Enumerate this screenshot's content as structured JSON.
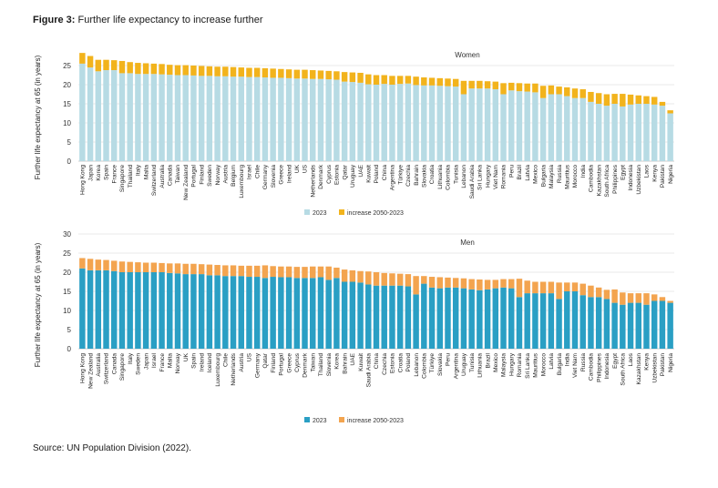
{
  "figure": {
    "label": "Figure 3:",
    "title": "Further life expectancy to increase further",
    "source": "Source: UN Population Division (2022)."
  },
  "colors": {
    "women_2023": "#b7dbe4",
    "men_2023": "#2a9fc4",
    "women_increase": "#f2b31c",
    "men_increase": "#f3a44f",
    "gridline": "#e3e3e3",
    "axis": "#555555"
  },
  "chart_data": [
    {
      "type": "bar",
      "stacked": true,
      "title": "Women",
      "ylabel": "Further life expectancy at 65 (in years)",
      "xlabel": "",
      "ylim": [
        0,
        30
      ],
      "yticks": [
        0,
        5,
        10,
        15,
        20,
        25
      ],
      "grid": true,
      "legend_position": "bottom-center",
      "categories": [
        "Hong Kong",
        "Japan",
        "Korea",
        "Spain",
        "France",
        "Singapore",
        "Thailand",
        "Italy",
        "Malta",
        "Switzerland",
        "Australia",
        "Canada",
        "Taiwan",
        "New Zealand",
        "Portugal",
        "Finland",
        "Sweden",
        "Norway",
        "Austria",
        "Belgium",
        "Luxembourg",
        "Israel",
        "Chile",
        "Germany",
        "Slovenia",
        "Greece",
        "Ireland",
        "UK",
        "US",
        "Netherlands",
        "Denmark",
        "Cyprus",
        "Estonia",
        "Qatar",
        "Uruguay",
        "UAE",
        "Kuwait",
        "Poland",
        "China",
        "Argentina",
        "Türkiye",
        "Czechia",
        "Bahrain",
        "Slovakia",
        "Croatia",
        "Lithuania",
        "Colombia",
        "Tunisia",
        "Lebanon",
        "Saudi Arabia",
        "Sri Lanka",
        "Hungary",
        "Viet Nam",
        "Romania",
        "Peru",
        "Brazil",
        "Latvia",
        "Mexico",
        "Bulgaria",
        "Malaysia",
        "Russia",
        "Mauritius",
        "Morocco",
        "India",
        "Cambodia",
        "Kazakhstan",
        "South Africa",
        "Philippines",
        "Egypt",
        "Indonesia",
        "Uzbekistan",
        "Laos",
        "Kenya",
        "Pakistan",
        "Nigeria"
      ],
      "series": [
        {
          "name": "2023",
          "values": [
            25.5,
            24.5,
            23.5,
            23.8,
            23.8,
            23.0,
            23.0,
            22.8,
            22.8,
            22.8,
            22.7,
            22.6,
            22.5,
            22.5,
            22.4,
            22.3,
            22.3,
            22.2,
            22.2,
            22.1,
            22.1,
            22.0,
            22.0,
            21.9,
            21.8,
            21.8,
            21.7,
            21.6,
            21.6,
            21.5,
            21.5,
            21.4,
            21.3,
            20.8,
            20.7,
            20.5,
            20.1,
            20.0,
            20.2,
            20.0,
            20.2,
            20.3,
            19.9,
            19.8,
            19.8,
            19.7,
            19.6,
            19.5,
            17.5,
            19.0,
            19.0,
            19.0,
            18.8,
            17.5,
            18.5,
            18.3,
            18.2,
            18.0,
            16.5,
            17.5,
            17.5,
            17.0,
            16.5,
            16.5,
            15.5,
            15.0,
            14.5,
            15.0,
            14.3,
            14.8,
            15.0,
            15.0,
            14.8,
            14.5,
            12.5
          ]
        },
        {
          "name": "increase 2050-2023",
          "values": [
            2.8,
            3.0,
            3.0,
            2.7,
            2.6,
            3.2,
            2.9,
            2.9,
            2.8,
            2.7,
            2.7,
            2.6,
            2.6,
            2.6,
            2.6,
            2.6,
            2.5,
            2.5,
            2.5,
            2.5,
            2.4,
            2.4,
            2.4,
            2.4,
            2.4,
            2.3,
            2.3,
            2.3,
            2.3,
            2.3,
            2.2,
            2.2,
            2.2,
            2.5,
            2.5,
            2.6,
            2.6,
            2.5,
            2.3,
            2.3,
            2.1,
            2.0,
            2.2,
            2.1,
            2.0,
            2.0,
            2.0,
            2.0,
            3.5,
            2.0,
            2.0,
            1.9,
            2.0,
            2.9,
            2.0,
            2.1,
            2.1,
            2.3,
            3.2,
            2.3,
            2.0,
            2.3,
            2.5,
            2.3,
            2.6,
            2.8,
            3.0,
            2.6,
            3.3,
            2.6,
            2.2,
            2.0,
            2.0,
            1.0,
            0.8
          ]
        }
      ]
    },
    {
      "type": "bar",
      "stacked": true,
      "title": "Men",
      "ylabel": "Further life expectancy at 65 (in years)",
      "xlabel": "",
      "ylim": [
        0,
        30
      ],
      "yticks": [
        0,
        5,
        10,
        15,
        20,
        25,
        30
      ],
      "grid": true,
      "legend_position": "bottom-center",
      "categories": [
        "Hong Kong",
        "New Zealand",
        "Australia",
        "Switzerland",
        "Canada",
        "Singapore",
        "Italy",
        "Sweden",
        "Japan",
        "Israel",
        "France",
        "Malta",
        "Norway",
        "UK",
        "Spain",
        "Ireland",
        "Iceland",
        "Luxembourg",
        "Chile",
        "Netherlands",
        "Austria",
        "US",
        "Germany",
        "Qatar",
        "Finland",
        "Portugal",
        "Greece",
        "Cyprus",
        "Denmark",
        "Taiwan",
        "Thailand",
        "Slovenia",
        "Korea",
        "Bahrain",
        "UAE",
        "Kuwait",
        "Saudi Arabia",
        "China",
        "Czechia",
        "Estonia",
        "Croatia",
        "Poland",
        "Lebanon",
        "Colombia",
        "Türkiye",
        "Slovakia",
        "Peru",
        "Argentina",
        "Uruguay",
        "Tunisia",
        "Lithuania",
        "Brazil",
        "Mexico",
        "Malaysia",
        "Hungary",
        "Romania",
        "Sri Lanka",
        "Mauritius",
        "Morocco",
        "Latvia",
        "Bulgaria",
        "India",
        "Viet Nam",
        "Russia",
        "Cambodia",
        "Philippines",
        "Indonesia",
        "Egypt",
        "South Africa",
        "Laos",
        "Kazakhstan",
        "Kenya",
        "Uzbekistan",
        "Pakistan",
        "Nigeria"
      ],
      "series": [
        {
          "name": "2023",
          "values": [
            21.0,
            20.5,
            20.5,
            20.5,
            20.3,
            20.0,
            20.0,
            20.0,
            20.0,
            20.0,
            20.0,
            19.8,
            19.7,
            19.5,
            19.5,
            19.5,
            19.2,
            19.2,
            19.0,
            19.0,
            19.0,
            18.8,
            18.8,
            18.5,
            18.8,
            18.7,
            18.7,
            18.5,
            18.5,
            18.5,
            18.7,
            18.0,
            18.5,
            17.5,
            17.5,
            17.3,
            16.8,
            16.5,
            16.5,
            16.5,
            16.5,
            16.3,
            14.2,
            17.0,
            16.0,
            15.8,
            16.0,
            16.0,
            15.8,
            15.5,
            15.3,
            15.5,
            15.8,
            16.0,
            15.8,
            13.5,
            14.5,
            14.5,
            14.5,
            14.5,
            13.0,
            15.0,
            15.0,
            14.0,
            13.5,
            13.5,
            13.0,
            12.0,
            11.5,
            12.0,
            12.0,
            11.5,
            12.5,
            12.5,
            12.0
          ]
        },
        {
          "name": "increase 2050-2023",
          "values": [
            2.7,
            3.0,
            2.8,
            2.7,
            2.7,
            2.8,
            2.7,
            2.6,
            2.5,
            2.5,
            2.4,
            2.5,
            2.6,
            2.7,
            2.7,
            2.6,
            2.8,
            2.7,
            2.8,
            2.8,
            2.7,
            2.9,
            2.9,
            3.3,
            2.8,
            2.8,
            2.8,
            2.9,
            2.9,
            3.0,
            2.8,
            3.5,
            2.7,
            3.2,
            3.0,
            3.0,
            3.4,
            3.5,
            3.3,
            3.2,
            3.1,
            3.2,
            4.8,
            2.0,
            2.8,
            2.9,
            2.6,
            2.5,
            2.6,
            2.7,
            2.8,
            2.5,
            2.2,
            2.2,
            2.4,
            4.8,
            3.3,
            3.0,
            3.0,
            3.0,
            4.3,
            2.3,
            2.3,
            3.0,
            3.0,
            2.5,
            2.4,
            3.5,
            3.2,
            2.5,
            2.5,
            3.0,
            1.7,
            1.0,
            0.5
          ]
        }
      ]
    }
  ]
}
